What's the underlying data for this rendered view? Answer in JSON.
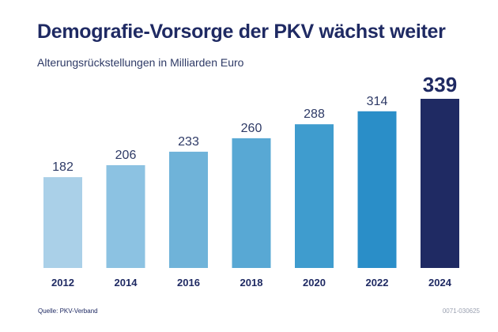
{
  "colors": {
    "title": "#1f2a63",
    "label": "#2e3a66",
    "bars": [
      "#aad0e8",
      "#8cc2e2",
      "#6fb3d9",
      "#58a8d4",
      "#3f9cce",
      "#2a8ec8",
      "#1f2a63"
    ]
  },
  "chart_data": {
    "type": "bar",
    "title": "Demografie-Vorsorge der PKV wächst weiter",
    "subtitle": "Alterungsrückstellungen in Milliarden Euro",
    "xlabel": "",
    "ylabel": "",
    "categories": [
      "2012",
      "2014",
      "2016",
      "2018",
      "2020",
      "2022",
      "2024"
    ],
    "values": [
      182,
      206,
      233,
      260,
      288,
      314,
      339
    ],
    "value_labels": [
      "182",
      "206",
      "233",
      "260",
      "288",
      "314",
      "339"
    ],
    "ylim": [
      0,
      339
    ],
    "grid": false,
    "highlight_last": true
  },
  "footer": {
    "source": "Quelle: PKV-Verband",
    "code": "0071-030625"
  }
}
